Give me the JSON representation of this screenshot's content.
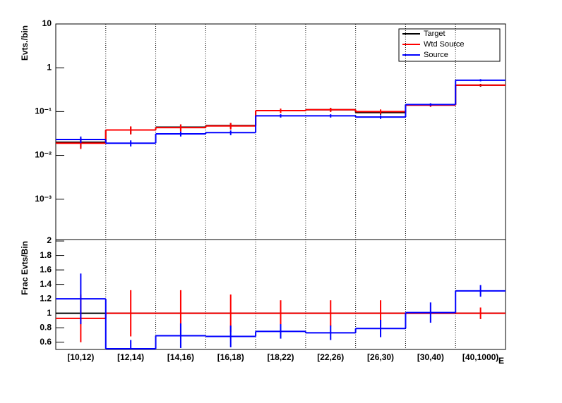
{
  "chart_data": [
    {
      "type": "step",
      "y_label": "Evts./bin",
      "log_y": true,
      "ylim": [
        0.00012,
        10
      ],
      "yticks": [
        {
          "value": 0.001,
          "label": "10⁻³"
        },
        {
          "value": 0.01,
          "label": "10⁻²"
        },
        {
          "value": 0.1,
          "label": "10⁻¹"
        },
        1,
        10
      ],
      "legend": "top-right",
      "grid_x": true,
      "series": [
        {
          "name": "Target",
          "color": "#000000",
          "values": [
            0.02,
            0.038,
            0.044,
            0.048,
            0.105,
            0.11,
            0.095,
            0.143,
            0.4
          ],
          "errors": [
            0.005,
            0.007,
            0.007,
            0.007,
            0.01,
            0.01,
            0.01,
            0.01,
            0.03
          ]
        },
        {
          "name": "Wtd Source",
          "color": "#ff0000",
          "values": [
            0.019,
            0.038,
            0.043,
            0.047,
            0.105,
            0.11,
            0.1,
            0.14,
            0.4
          ],
          "errors": [
            0.005,
            0.008,
            0.008,
            0.008,
            0.012,
            0.012,
            0.012,
            0.012,
            0.02
          ]
        },
        {
          "name": "Source",
          "color": "#0000ff",
          "values": [
            0.023,
            0.019,
            0.031,
            0.033,
            0.08,
            0.08,
            0.075,
            0.145,
            0.52
          ],
          "errors": [
            0.004,
            0.003,
            0.004,
            0.004,
            0.007,
            0.007,
            0.007,
            0.01,
            0.03
          ]
        }
      ]
    },
    {
      "type": "step",
      "y_label": "Frac Evts/Bin",
      "x_label": "E",
      "log_y": false,
      "ylim": [
        0.5,
        2.02
      ],
      "yticks": [
        0.6,
        0.8,
        1,
        1.2,
        1.4,
        1.6,
        1.8,
        2
      ],
      "grid_x": true,
      "categories": [
        "[10,12)",
        "[12,14)",
        "[14,16)",
        "[16,18)",
        "[18,22)",
        "[22,26)",
        "[26,30)",
        "[30,40)",
        "[40,1000)"
      ],
      "series": [
        {
          "name": "Target",
          "color": "#000000",
          "values": [
            1,
            1,
            1,
            1,
            1,
            1,
            1,
            1,
            1
          ]
        },
        {
          "name": "Wtd Source",
          "color": "#ff0000",
          "values": [
            0.93,
            1.0,
            1.0,
            1.0,
            1.0,
            1.0,
            1.0,
            1.0,
            1.0
          ],
          "errors": [
            0.33,
            0.32,
            0.32,
            0.26,
            0.18,
            0.18,
            0.18,
            0.0,
            0.08
          ]
        },
        {
          "name": "Source",
          "color": "#0000ff",
          "values": [
            1.2,
            0.51,
            0.69,
            0.68,
            0.75,
            0.73,
            0.79,
            1.01,
            1.31
          ],
          "errors": [
            0.35,
            0.12,
            0.17,
            0.15,
            0.1,
            0.1,
            0.12,
            0.14,
            0.08
          ]
        }
      ]
    }
  ]
}
